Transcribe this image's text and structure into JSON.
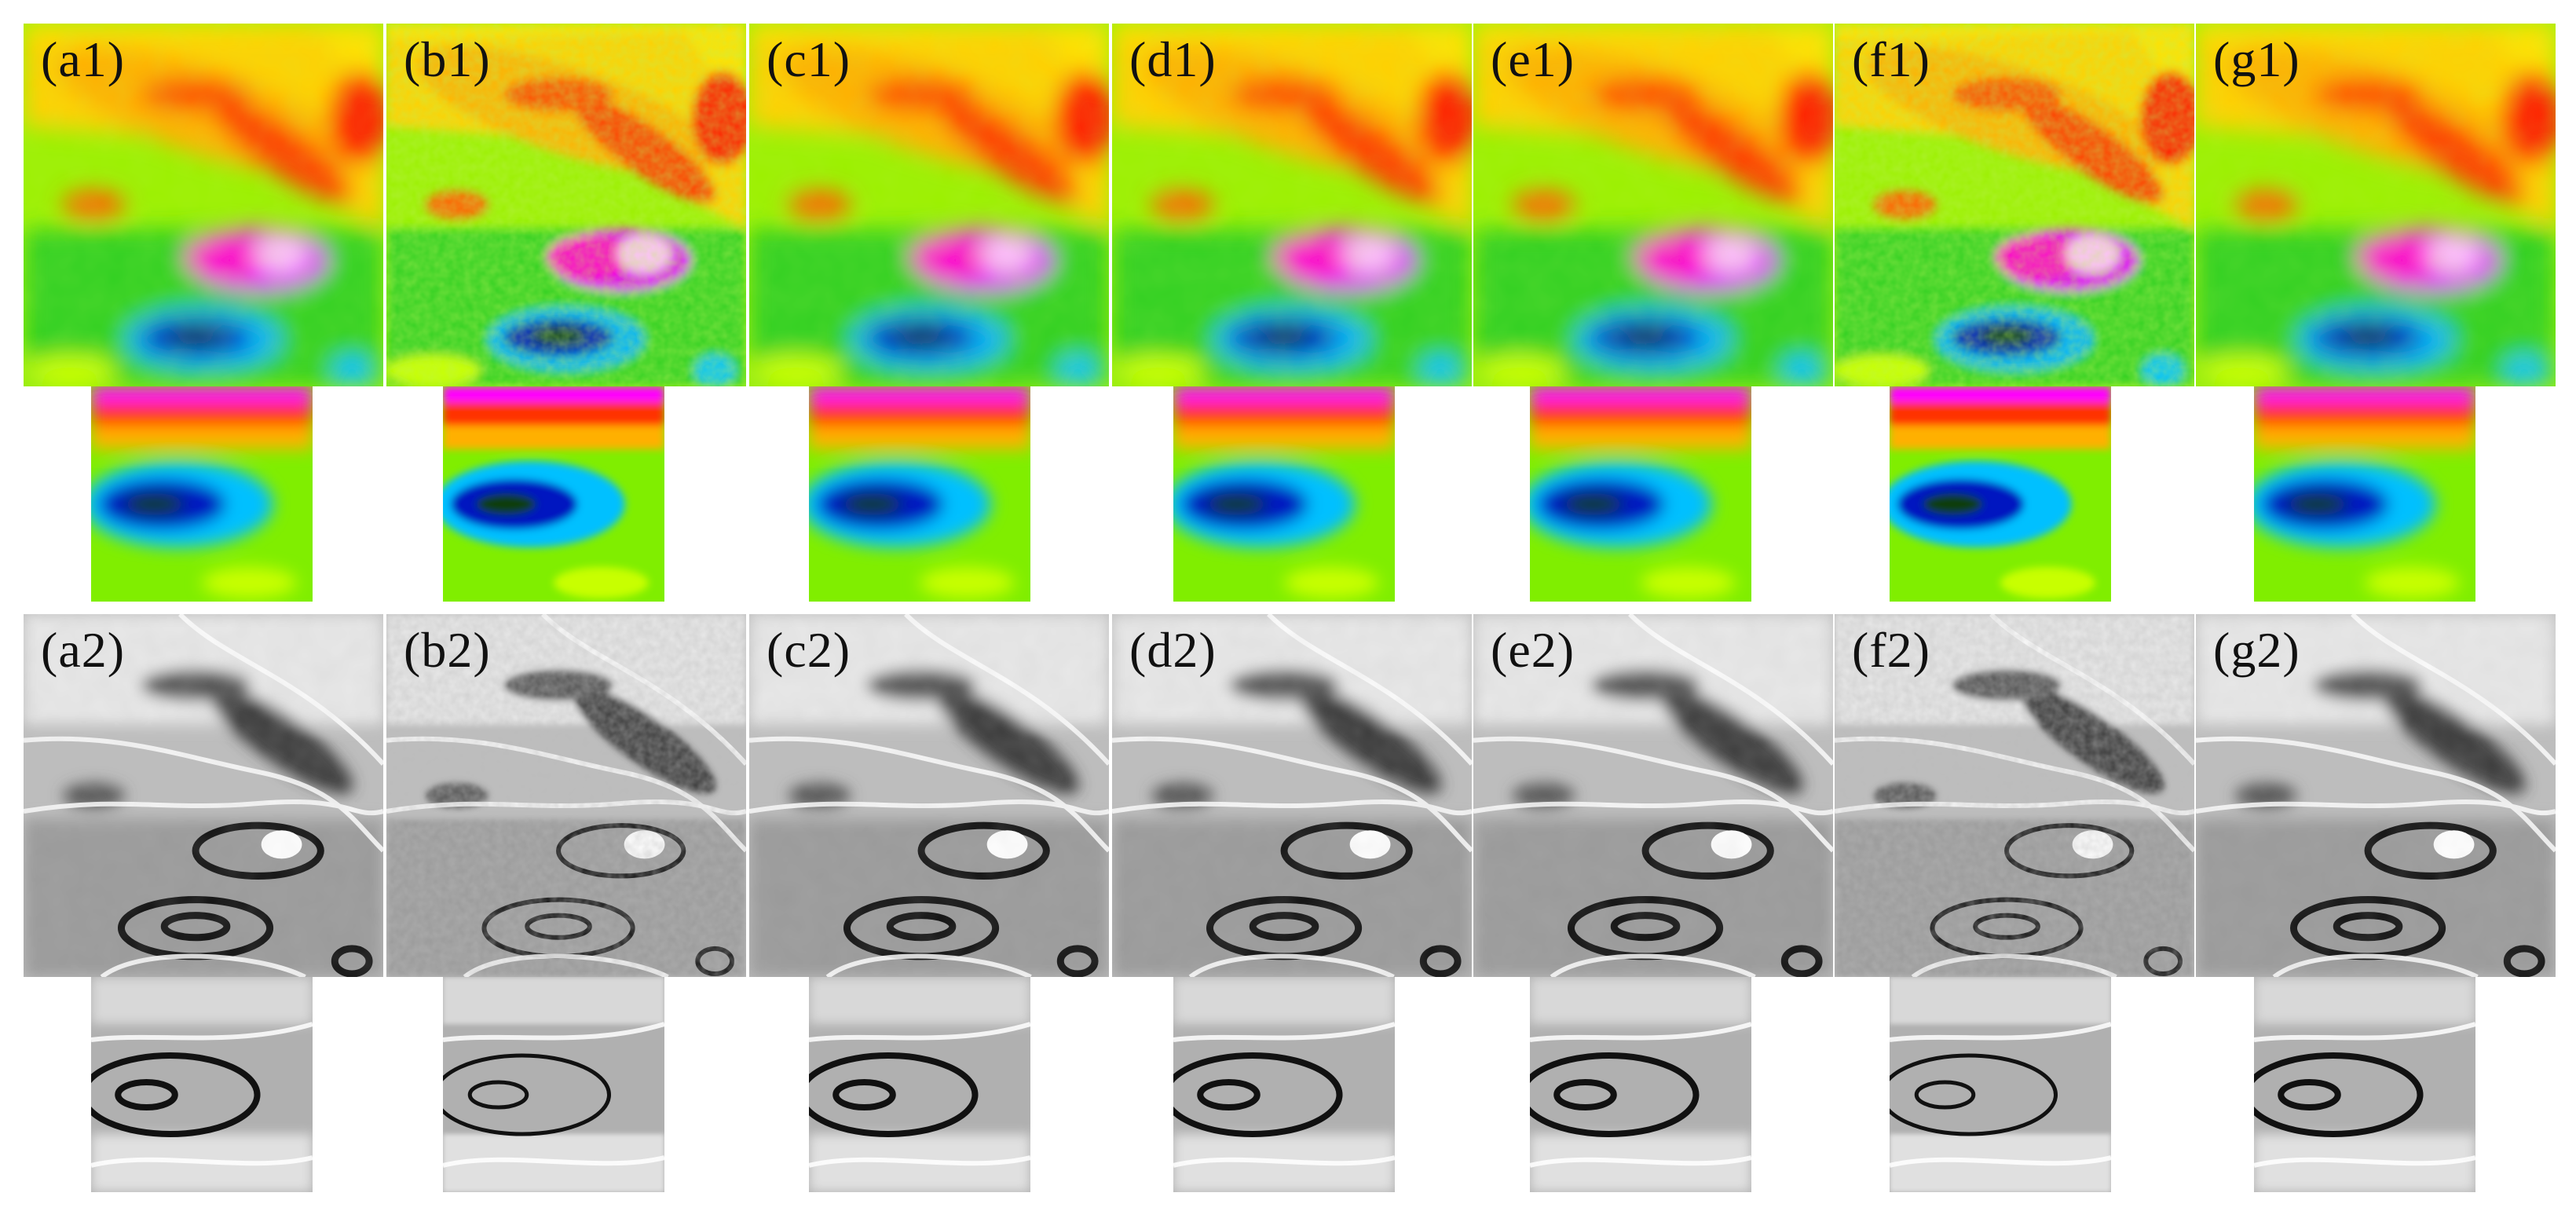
{
  "figure": {
    "columns": [
      {
        "key": "a",
        "top_label": "(a1)",
        "bottom_label": "(a2)"
      },
      {
        "key": "b",
        "top_label": "(b1)",
        "bottom_label": "(b2)"
      },
      {
        "key": "c",
        "top_label": "(c1)",
        "bottom_label": "(c2)"
      },
      {
        "key": "d",
        "top_label": "(d1)",
        "bottom_label": "(d2)"
      },
      {
        "key": "e",
        "top_label": "(e1)",
        "bottom_label": "(e2)"
      },
      {
        "key": "f",
        "top_label": "(f1)",
        "bottom_label": "(f2)"
      },
      {
        "key": "g",
        "top_label": "(g1)",
        "bottom_label": "(g2)"
      }
    ],
    "colormap": [
      "#0000a0",
      "#0b3d0b",
      "#00c0ff",
      "#00e000",
      "#c8ff00",
      "#ffff00",
      "#ffa000",
      "#ff2000",
      "#ff00ff",
      "#ffffff"
    ],
    "grayscale": [
      "#000000",
      "#ffffff"
    ]
  }
}
